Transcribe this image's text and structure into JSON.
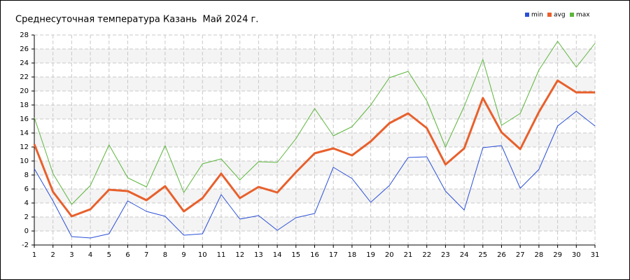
{
  "chart_data": {
    "type": "line",
    "title": "Среднесуточная температура Казань  Май 2024 г.",
    "x": [
      1,
      2,
      3,
      4,
      5,
      6,
      7,
      8,
      9,
      10,
      11,
      12,
      13,
      14,
      15,
      16,
      17,
      18,
      19,
      20,
      21,
      22,
      23,
      24,
      25,
      26,
      27,
      28,
      29,
      30,
      31
    ],
    "xlim": [
      1,
      31
    ],
    "xticks": [
      1,
      2,
      3,
      4,
      5,
      6,
      7,
      8,
      9,
      10,
      11,
      12,
      13,
      14,
      15,
      16,
      17,
      18,
      19,
      20,
      21,
      22,
      23,
      24,
      25,
      26,
      27,
      28,
      29,
      30,
      31
    ],
    "ylim": [
      -2,
      28
    ],
    "yticks": [
      -2,
      0,
      2,
      4,
      6,
      8,
      10,
      12,
      14,
      16,
      18,
      20,
      22,
      24,
      26,
      28
    ],
    "grid": true,
    "legend": "top-right",
    "series": [
      {
        "name": "min",
        "color": "#2a4fd6",
        "values": [
          8.9,
          4.3,
          -0.8,
          -1.0,
          -0.4,
          4.3,
          2.8,
          2.1,
          -0.6,
          -0.4,
          5.2,
          1.7,
          2.2,
          0.1,
          1.9,
          2.5,
          9.1,
          7.5,
          4.1,
          6.5,
          10.5,
          10.6,
          5.7,
          3.0,
          11.9,
          12.2,
          6.1,
          8.8,
          15.0,
          17.1,
          15.0
        ]
      },
      {
        "name": "avg",
        "color": "#e8602c",
        "values": [
          12.4,
          5.6,
          2.1,
          3.1,
          5.9,
          5.7,
          4.4,
          6.4,
          2.8,
          4.7,
          8.2,
          4.7,
          6.3,
          5.5,
          8.4,
          11.1,
          11.8,
          10.8,
          12.8,
          15.4,
          16.8,
          14.7,
          9.5,
          11.8,
          19.0,
          14.1,
          11.7,
          17.0,
          21.5,
          19.8,
          19.8
        ]
      },
      {
        "name": "max",
        "color": "#5cb53c",
        "values": [
          16.2,
          8.2,
          3.8,
          6.5,
          12.3,
          7.6,
          6.3,
          12.2,
          5.5,
          9.6,
          10.3,
          7.3,
          9.9,
          9.8,
          13.2,
          17.5,
          13.6,
          14.9,
          18.0,
          21.9,
          22.8,
          18.6,
          12.0,
          17.8,
          24.5,
          15.1,
          16.8,
          23.0,
          27.1,
          23.4,
          26.8
        ]
      }
    ]
  }
}
